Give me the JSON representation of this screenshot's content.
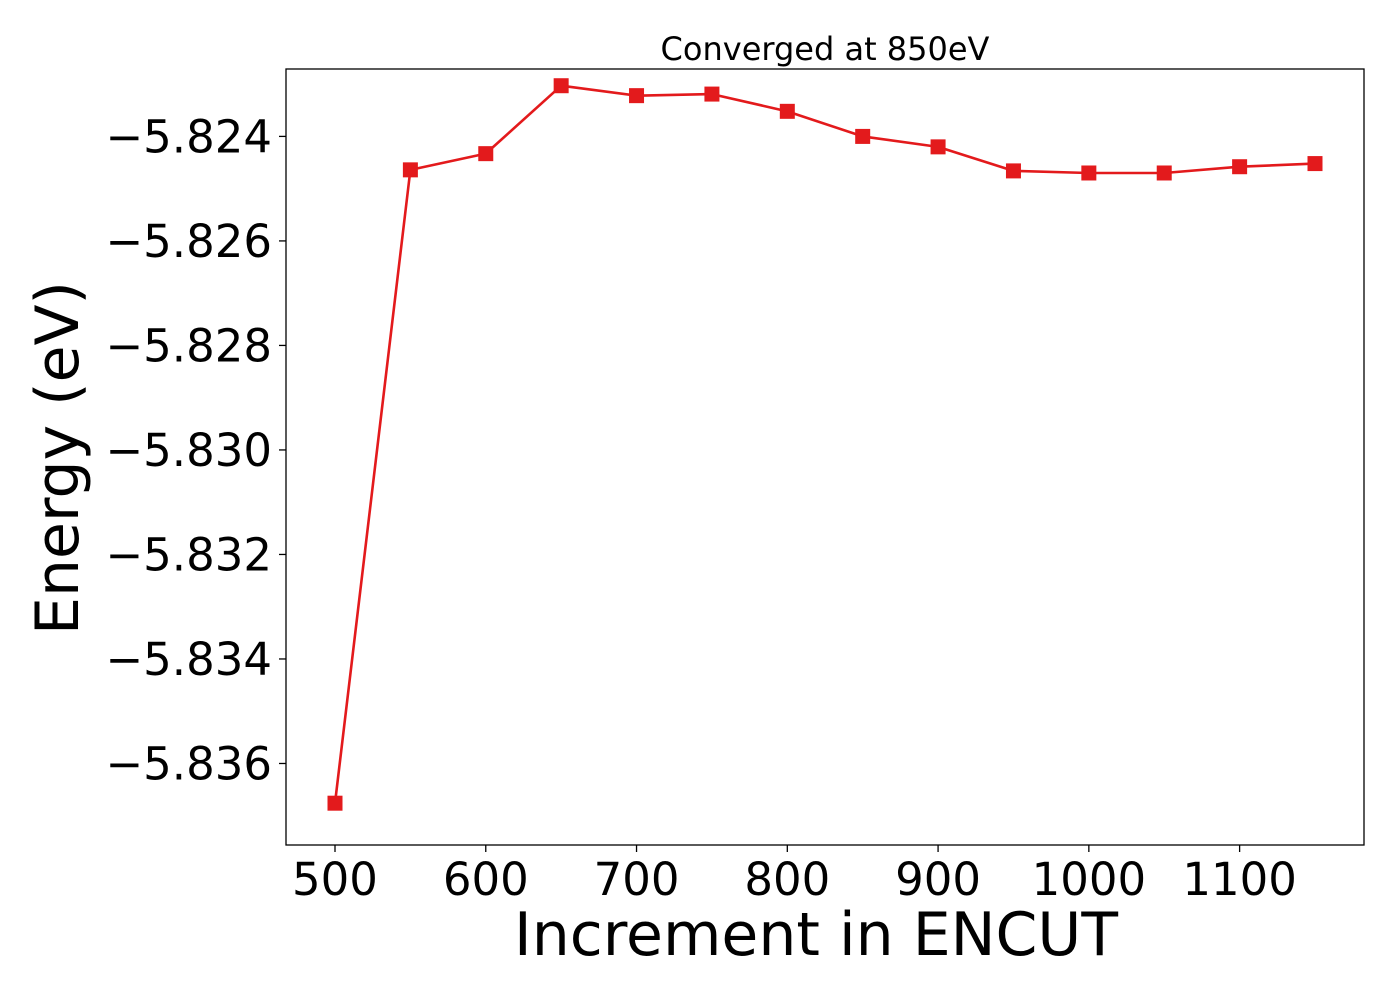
{
  "chart_data": {
    "type": "line",
    "title": "Converged at 850eV",
    "xlabel": "Increment in ENCUT",
    "ylabel": "Energy (eV)",
    "xlim": [
      467.5,
      1182.5
    ],
    "ylim": [
      -5.83756,
      -5.82271
    ],
    "x_ticks": [
      500,
      600,
      700,
      800,
      900,
      1000,
      1100
    ],
    "x_tick_labels": [
      "500",
      "600",
      "700",
      "800",
      "900",
      "1000",
      "1100"
    ],
    "y_ticks": [
      -5.824,
      -5.826,
      -5.828,
      -5.83,
      -5.832,
      -5.834,
      -5.836
    ],
    "y_tick_labels": [
      "−5.824",
      "−5.826",
      "−5.828",
      "−5.830",
      "−5.832",
      "−5.834",
      "−5.836"
    ],
    "grid": false,
    "legend": "none",
    "series": [
      {
        "color": "#e31a1c",
        "marker": "square",
        "x": [
          500,
          550,
          600,
          650,
          700,
          750,
          800,
          850,
          900,
          950,
          1000,
          1050,
          1100,
          1150
        ],
        "y": [
          -5.83676,
          -5.82464,
          -5.82433,
          -5.82303,
          -5.82322,
          -5.82319,
          -5.82352,
          -5.824,
          -5.8242,
          -5.82466,
          -5.8247,
          -5.8247,
          -5.82458,
          -5.82452
        ]
      }
    ]
  }
}
